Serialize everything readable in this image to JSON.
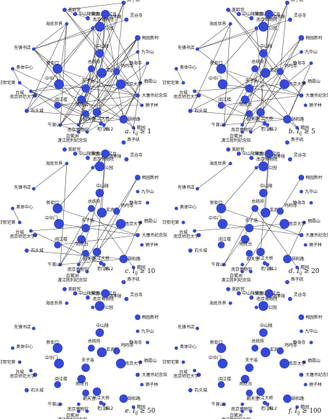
{
  "figure": {
    "panels": [
      {
        "id": "a",
        "caption": "a. I",
        "threshold": "≥ 1",
        "edge_density": 1.0
      },
      {
        "id": "b",
        "caption": "b. I",
        "threshold": "≥ 5",
        "edge_density": 0.55
      },
      {
        "id": "c",
        "caption": "c. I",
        "threshold": "≥ 10",
        "edge_density": 0.28
      },
      {
        "id": "d",
        "caption": "d. I",
        "threshold": "≥ 20",
        "edge_density": 0.16
      },
      {
        "id": "e",
        "caption": "e. I",
        "threshold": "≥ 50",
        "edge_density": 0.0
      },
      {
        "id": "f",
        "caption": "f. I",
        "threshold": "≥ 100",
        "edge_density": 0.0
      }
    ],
    "caption_subscript": "ij",
    "nodes": [
      {
        "label": "美龄宫"
      },
      {
        "label": "中山陵陵园"
      },
      {
        "label": "紫金山天文台"
      },
      {
        "label": "明孝陵"
      },
      {
        "label": "海底世界"
      },
      {
        "label": "古林公园"
      },
      {
        "label": "梅园新村"
      },
      {
        "label": "灵谷寺"
      },
      {
        "label": "南京博物院"
      },
      {
        "label": "先锋书店"
      },
      {
        "label": "九华山"
      },
      {
        "label": "奥体中心"
      },
      {
        "label": "中山陵"
      },
      {
        "label": "总统府"
      },
      {
        "label": "新街口"
      },
      {
        "label": "玄武湖"
      },
      {
        "label": "鸡鸣寺"
      },
      {
        "label": "中华门"
      },
      {
        "label": "夫子庙"
      },
      {
        "label": "栖霞山"
      },
      {
        "label": "雨花台"
      },
      {
        "label": "南京大学"
      },
      {
        "label": "朝天宫"
      },
      {
        "label": "大屠杀纪念馆"
      },
      {
        "label": "南京师范大学"
      },
      {
        "label": "阅江楼"
      },
      {
        "label": "石头城"
      },
      {
        "label": "长江大桥"
      },
      {
        "label": "颐和路"
      },
      {
        "label": "燕子矶"
      },
      {
        "label": "牛首山"
      },
      {
        "label": "台城"
      },
      {
        "label": "老门东"
      },
      {
        "label": "狮子林"
      },
      {
        "label": "南京博物馆"
      },
      {
        "label": "1912"
      },
      {
        "label": "静海寺"
      },
      {
        "label": "瞻园"
      },
      {
        "label": "甘熙宅第"
      },
      {
        "label": "白鹭洲"
      },
      {
        "label": "渡江胜利纪念馆"
      }
    ]
  }
}
